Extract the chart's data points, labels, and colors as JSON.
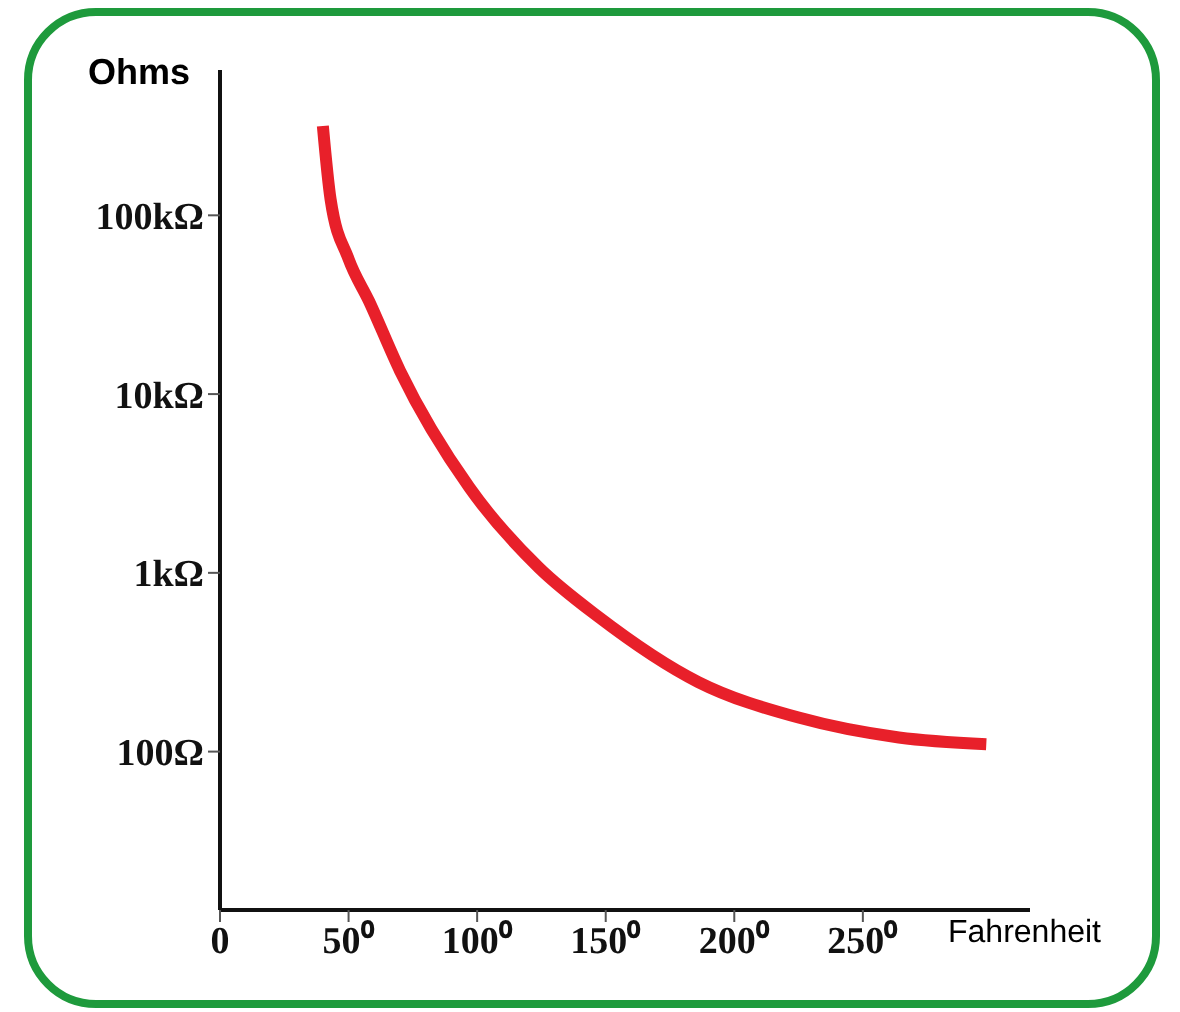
{
  "chart_data": {
    "type": "line",
    "xlabel": "Fahrenheit",
    "ylabel": "Ohms",
    "log": "y",
    "x": [
      40,
      43,
      50,
      58,
      70,
      97,
      124,
      147,
      186,
      225,
      264,
      298
    ],
    "series": [
      {
        "color": "#e8202a",
        "values": [
          316000,
          123000,
          57000,
          33000,
          13500,
          3000,
          1070,
          570,
          245,
          155,
          120,
          110
        ]
      }
    ],
    "xlim": [
      0,
      315
    ],
    "xticks": [
      0,
      {
        "value": 50,
        "label": "50⁰"
      },
      {
        "value": 100,
        "label": "100⁰"
      },
      {
        "value": 150,
        "label": "150⁰"
      },
      {
        "value": 200,
        "label": "200⁰"
      },
      {
        "value": 250,
        "label": "250⁰"
      }
    ],
    "ylim": [
      13,
      650000
    ],
    "yticks": [
      {
        "value": 100,
        "label": "100Ω"
      },
      {
        "value": 1000,
        "label": "1kΩ"
      },
      {
        "value": 10000,
        "label": "10kΩ"
      },
      {
        "value": 100000,
        "label": "100kΩ"
      }
    ]
  }
}
